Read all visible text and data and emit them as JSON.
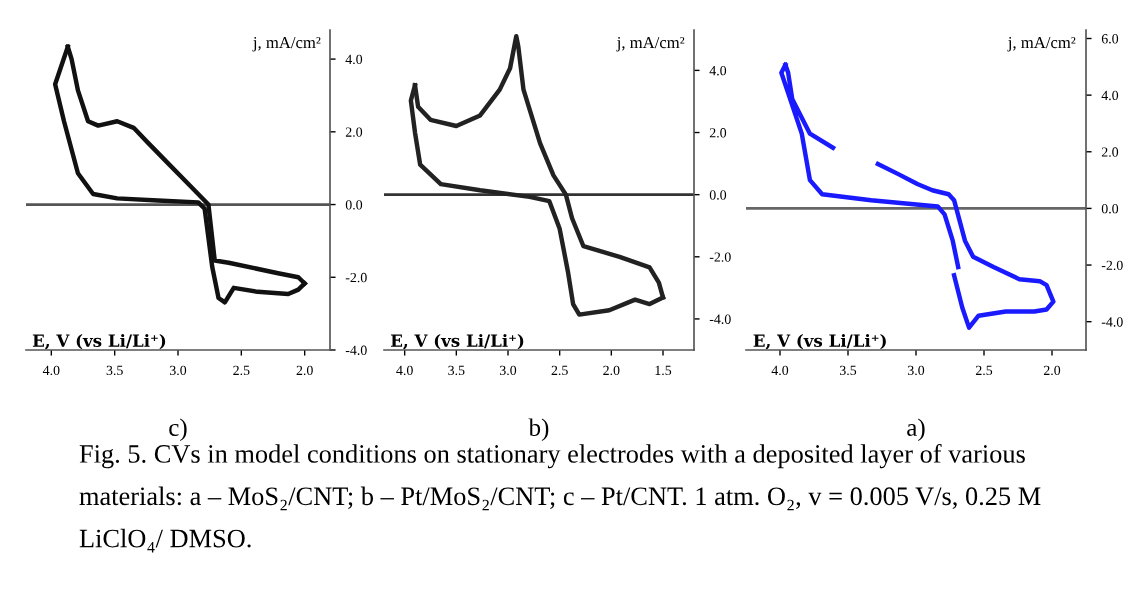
{
  "chart_data": [
    {
      "type": "line",
      "title": "c)",
      "xlabel": "E, V (vs Li/Li⁺)",
      "ylabel": "j, mA/cm²",
      "xlim": [
        4.2,
        1.8
      ],
      "xticks": [
        {
          "value": 4,
          "label": "4.0"
        },
        {
          "value": 3.5,
          "label": "3.5"
        },
        {
          "value": 3,
          "label": "3.0"
        },
        {
          "value": 2.5,
          "label": "2.5"
        },
        {
          "value": 2,
          "label": "2.0"
        }
      ],
      "ylim": [
        -4.0,
        4.8
      ],
      "yticks": [
        {
          "value": -4,
          "label": "-4.0"
        },
        {
          "value": -2,
          "label": "-2.0"
        },
        {
          "value": 0,
          "label": "0.0"
        },
        {
          "value": 2,
          "label": "2.0"
        },
        {
          "value": 4,
          "label": "4.0"
        }
      ],
      "grid": false,
      "legend": false,
      "ref_lines": [
        {
          "axis": "y",
          "value": 0,
          "color": "#555555"
        }
      ],
      "annotations": [
        "Fig. 5. CVs in model conditions on stationary electrodes with a deposited layer of various materials: a – MoS₂/CNT; b – Pt/MoS₂/CNT; c – Pt/CNT. 1 atm. O₂, v = 0.005 V/s, 0.25 M LiClO₄/ DMSO."
      ],
      "series": [
        {
          "color": "#111111",
          "x": [
            3.87,
            3.97,
            3.9,
            3.79,
            3.67,
            3.48,
            3.16,
            2.84,
            2.79,
            2.73,
            2.68,
            2.63,
            2.56,
            2.37,
            2.13,
            2.05,
            2.0
          ],
          "values": [
            4.34,
            3.31,
            2.29,
            0.86,
            0.29,
            0.17,
            0.11,
            0.06,
            -0.11,
            -1.71,
            -2.57,
            -2.69,
            -2.29,
            -2.4,
            -2.46,
            -2.34,
            -2.17
          ]
        },
        {
          "color": "#111111",
          "x": [
            2.0,
            2.05,
            2.21,
            2.6,
            2.71,
            2.76,
            2.92,
            3.08,
            3.24,
            3.35,
            3.48,
            3.63,
            3.71,
            3.79,
            3.84,
            3.87
          ],
          "values": [
            -2.17,
            -2.0,
            -1.89,
            -1.6,
            -1.54,
            0,
            0.57,
            1.14,
            1.71,
            2.11,
            2.29,
            2.17,
            2.29,
            3.14,
            4.0,
            4.34
          ]
        }
      ]
    },
    {
      "type": "line",
      "title": "b)",
      "xlabel": "E, V (vs Li/Li⁺)",
      "ylabel": "j, mA/cm²",
      "xlim": [
        4.2,
        1.2
      ],
      "xticks": [
        {
          "value": 4,
          "label": "4.0"
        },
        {
          "value": 3.5,
          "label": "3.5"
        },
        {
          "value": 3,
          "label": "3.0"
        },
        {
          "value": 2.5,
          "label": "2.5"
        },
        {
          "value": 2,
          "label": "2.0"
        },
        {
          "value": 1.5,
          "label": "1.5"
        }
      ],
      "ylim": [
        -5.0,
        5.3
      ],
      "yticks": [
        {
          "value": -4,
          "label": "-4.0"
        },
        {
          "value": -2,
          "label": "-2.0"
        },
        {
          "value": 0,
          "label": "0.0"
        },
        {
          "value": 2,
          "label": "2.0"
        },
        {
          "value": 4,
          "label": "4.0"
        }
      ],
      "grid": false,
      "legend": false,
      "ref_lines": [
        {
          "axis": "y",
          "value": 0,
          "color": "#333333"
        }
      ],
      "series": [
        {
          "color": "#222222",
          "x": [
            3.9,
            3.87,
            3.75,
            3.5,
            3.27,
            3.08,
            2.98,
            2.92,
            2.9,
            2.85,
            2.69,
            2.56,
            2.44,
            2.38,
            2.27,
            1.92,
            1.63,
            1.54,
            1.5
          ],
          "values": [
            3.52,
            2.83,
            2.41,
            2.21,
            2.55,
            3.38,
            4.07,
            5.1,
            4.76,
            3.38,
            1.66,
            0.62,
            0,
            -0.76,
            -1.66,
            -2.0,
            -2.34,
            -2.83,
            -3.31
          ]
        },
        {
          "color": "#222222",
          "x": [
            1.5,
            1.63,
            1.77,
            2.02,
            2.31,
            2.37,
            2.42,
            2.5,
            2.6,
            2.79,
            3.27,
            3.65,
            3.85,
            3.9,
            3.94,
            3.9
          ],
          "values": [
            -3.31,
            -3.52,
            -3.38,
            -3.72,
            -3.86,
            -3.52,
            -2.48,
            -1.1,
            -0.21,
            -0.07,
            0.14,
            0.34,
            0.97,
            2.0,
            3.03,
            3.52
          ]
        }
      ]
    },
    {
      "type": "line",
      "title": "a)",
      "xlabel": "E, V (vs Li/Li⁺)",
      "ylabel": "j, mA/cm²",
      "xlim": [
        4.25,
        1.75
      ],
      "xticks": [
        {
          "value": 4,
          "label": "4.0"
        },
        {
          "value": 3.5,
          "label": "3.5"
        },
        {
          "value": 3,
          "label": "3.0"
        },
        {
          "value": 2.5,
          "label": "2.5"
        },
        {
          "value": 2,
          "label": "2.0"
        }
      ],
      "ylim": [
        -5.0,
        6.3
      ],
      "yticks": [
        {
          "value": -4,
          "label": "-4.0"
        },
        {
          "value": -2,
          "label": "-2.0"
        },
        {
          "value": 0,
          "label": "0.0"
        },
        {
          "value": 2,
          "label": "2.0"
        },
        {
          "value": 4,
          "label": "4.0"
        },
        {
          "value": 6,
          "label": "6.0"
        }
      ],
      "grid": false,
      "legend": false,
      "ref_lines": [
        {
          "axis": "y",
          "value": 0,
          "color": "#666666"
        }
      ],
      "series": [
        {
          "color": "#1a1aff",
          "x": [
            3.96,
            3.99,
            3.84,
            3.78,
            3.69,
            3.33,
            2.84,
            2.79,
            2.73,
            2.69,
            2.7,
            2.72,
            2.66,
            2.61,
            2.54,
            2.34,
            2.13,
            2.04,
            1.99,
            2.04,
            2.09,
            2.24,
            2.43,
            2.58,
            2.64,
            2.72,
            2.76,
            2.88,
            2.99,
            3.13,
            3.28,
            3.45,
            3.61,
            3.78,
            3.91,
            3.94,
            3.96
          ],
          "values": [
            5.07,
            4.79,
            2.64,
            1.0,
            0.5,
            0.29,
            0.07,
            -0.21,
            -1.14,
            -2.07,
            null,
            -2.36,
            -3.5,
            -4.21,
            -3.79,
            -3.64,
            -3.64,
            -3.57,
            -3.29,
            -2.71,
            -2.57,
            -2.5,
            -2.07,
            -1.71,
            -1.14,
            0.29,
            0.5,
            0.64,
            0.86,
            1.21,
            1.57,
            null,
            2.14,
            2.64,
            3.86,
            4.79,
            5.07
          ]
        }
      ]
    }
  ]
}
